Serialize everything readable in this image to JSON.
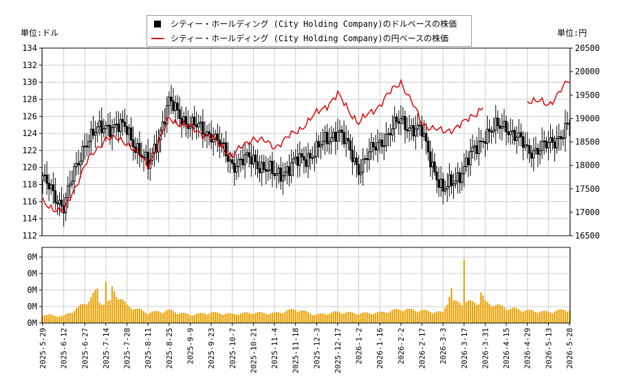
{
  "chart_data": [
    {
      "type": "candlestick+line",
      "legend": {
        "placement": "top-center",
        "entries": [
          {
            "name": "シティー・ホールディング (City Holding Company)のドルベースの株価",
            "style": "black-square"
          },
          {
            "name": "シティー・ホールディング (City Holding Company)の円ベースの株価",
            "style": "red-line"
          }
        ]
      },
      "ylabel_left": "単位:ドル",
      "ylabel_right": "単位:円",
      "ylim_left": [
        112,
        134
      ],
      "yticks_left": [
        112,
        114,
        116,
        118,
        120,
        122,
        124,
        126,
        128,
        130,
        132,
        134
      ],
      "ylim_right": [
        16500,
        20500
      ],
      "yticks_right": [
        16500,
        17000,
        17500,
        18000,
        18500,
        19000,
        19500,
        20000,
        20500
      ],
      "grid": true,
      "colors": {
        "candle": "#000000",
        "yen_line": "#e00000"
      },
      "x_dates": [
        "2025-5-29",
        "2025-6-12",
        "2025-6-27",
        "2025-7-14",
        "2025-7-28",
        "2025-8-11",
        "2025-8-25",
        "2025-9-9",
        "2025-9-23",
        "2025-10-7",
        "2025-10-21",
        "2025-11-4",
        "2025-11-18",
        "2025-12-3",
        "2025-12-17",
        "2026-1-2",
        "2026-1-16",
        "2026-2-2",
        "2026-2-17",
        "2026-3-3",
        "2026-3-17",
        "2026-3-31",
        "2026-4-15",
        "2026-4-29",
        "2026-5-13",
        "2026-5-28"
      ],
      "dollar_close_by_tick": [
        118.5,
        115.5,
        123.0,
        125.0,
        124.5,
        120.0,
        127.5,
        125.0,
        124.0,
        120.5,
        121.0,
        119.0,
        120.5,
        122.0,
        124.5,
        120.0,
        123.0,
        125.5,
        124.0,
        117.0,
        120.0,
        124.0,
        125.0,
        122.0,
        122.5,
        125.0
      ],
      "yen_close_by_tick": [
        17200,
        17000,
        18000,
        18600,
        18500,
        18000,
        19000,
        18800,
        18600,
        18200,
        18600,
        18400,
        18700,
        19100,
        19500,
        18900,
        19300,
        19800,
        18900,
        18700,
        18900,
        19300,
        null,
        19400,
        19300,
        19800
      ],
      "yen_gap": "2026-3-31 to 2026-4-10 (no data)"
    },
    {
      "type": "bar",
      "series": [
        {
          "name": "volume",
          "color": "#e8a000"
        }
      ],
      "ytick_labels": [
        "0M",
        "0M",
        "0M",
        "0M",
        "0M"
      ],
      "x_dates": [
        "2025-5-29",
        "2025-6-12",
        "2025-6-27",
        "2025-7-14",
        "2025-7-28",
        "2025-8-11",
        "2025-8-25",
        "2025-9-9",
        "2025-9-23",
        "2025-10-7",
        "2025-10-21",
        "2025-11-4",
        "2025-11-18",
        "2025-12-3",
        "2025-12-17",
        "2026-1-2",
        "2026-1-16",
        "2026-2-2",
        "2026-2-17",
        "2026-3-3",
        "2026-3-17",
        "2026-3-31",
        "2026-4-15",
        "2026-4-29",
        "2026-5-13",
        "2026-5-28"
      ],
      "volume_relative_by_tick": [
        0.12,
        0.1,
        0.28,
        0.6,
        0.25,
        0.15,
        0.18,
        0.12,
        0.15,
        0.13,
        0.15,
        0.14,
        0.2,
        0.12,
        0.16,
        0.14,
        0.15,
        0.2,
        0.18,
        0.15,
        1.0,
        0.3,
        0.22,
        0.18,
        0.16,
        0.2
      ]
    }
  ]
}
